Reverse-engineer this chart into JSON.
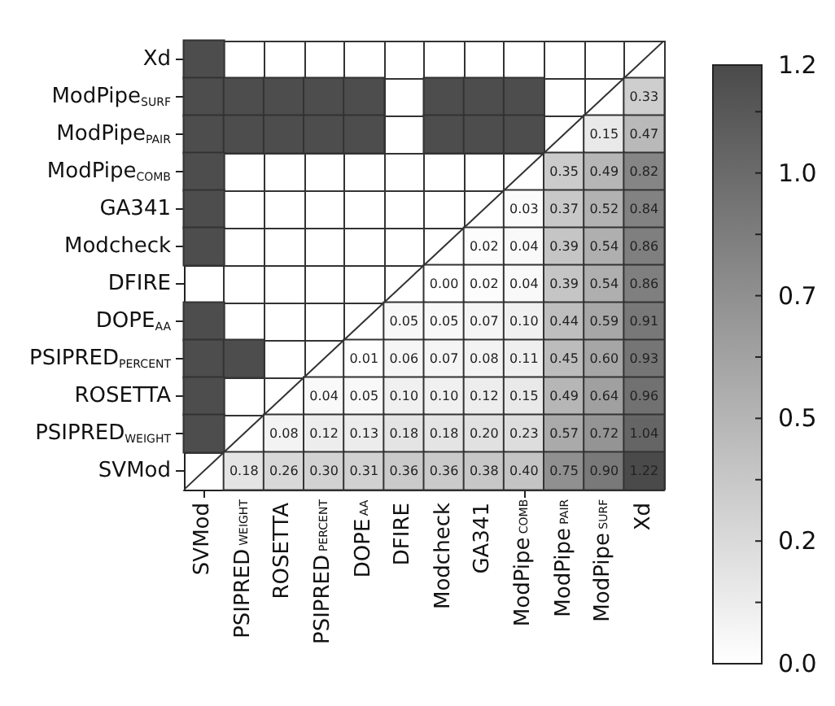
{
  "chart_data": {
    "type": "heatmap",
    "categories": [
      "SVMod",
      "PSIPRED$_{WEIGHT}$",
      "ROSETTA",
      "PSIPRED$_{PERCENT}$",
      "DOPE$_{AA}$",
      "DFIRE",
      "Modcheck",
      "GA341",
      "ModPipe$_{COMB}$",
      "ModPipe$_{PAIR}$",
      "ModPipe$_{SURF}$",
      "Xd"
    ],
    "y_categories": [
      "Xd",
      "ModPipe$_{SURF}$",
      "ModPipe$_{PAIR}$",
      "ModPipe$_{COMB}$",
      "GA341",
      "Modcheck",
      "DFIRE",
      "DOPE$_{AA}$",
      "PSIPRED$_{PERCENT}$",
      "ROSETTA",
      "PSIPRED$_{WEIGHT}$",
      "SVMod"
    ],
    "cells": [
      [
        1.2,
        null,
        null,
        null,
        null,
        null,
        null,
        null,
        null,
        null,
        null,
        null
      ],
      [
        1.2,
        1.2,
        1.2,
        1.2,
        1.2,
        null,
        1.2,
        1.2,
        1.2,
        null,
        null,
        0.33
      ],
      [
        1.2,
        1.2,
        1.2,
        1.2,
        1.2,
        null,
        1.2,
        1.2,
        1.2,
        null,
        0.15,
        0.47
      ],
      [
        1.2,
        null,
        null,
        null,
        null,
        null,
        null,
        null,
        null,
        0.35,
        0.49,
        0.82
      ],
      [
        1.2,
        null,
        null,
        null,
        null,
        null,
        null,
        null,
        0.03,
        0.37,
        0.52,
        0.84
      ],
      [
        1.2,
        null,
        null,
        null,
        null,
        null,
        null,
        0.02,
        0.04,
        0.39,
        0.54,
        0.86
      ],
      [
        null,
        null,
        null,
        null,
        null,
        null,
        0.0,
        0.02,
        0.04,
        0.39,
        0.54,
        0.86
      ],
      [
        1.2,
        null,
        null,
        null,
        null,
        0.05,
        0.05,
        0.07,
        0.1,
        0.44,
        0.59,
        0.91
      ],
      [
        1.2,
        1.2,
        null,
        null,
        0.01,
        0.06,
        0.07,
        0.08,
        0.11,
        0.45,
        0.6,
        0.93
      ],
      [
        1.2,
        null,
        null,
        0.04,
        0.05,
        0.1,
        0.1,
        0.12,
        0.15,
        0.49,
        0.64,
        0.96
      ],
      [
        1.2,
        null,
        0.08,
        0.12,
        0.13,
        0.18,
        0.18,
        0.2,
        0.23,
        0.57,
        0.72,
        1.04
      ],
      [
        null,
        0.18,
        0.26,
        0.3,
        0.31,
        0.36,
        0.36,
        0.38,
        0.4,
        0.75,
        0.9,
        1.22
      ]
    ],
    "cell_labels": [
      [
        null,
        null,
        null,
        null,
        null,
        null,
        null,
        null,
        null,
        null,
        null,
        null
      ],
      [
        null,
        null,
        null,
        null,
        null,
        null,
        null,
        null,
        null,
        null,
        null,
        "0.33"
      ],
      [
        null,
        null,
        null,
        null,
        null,
        null,
        null,
        null,
        null,
        null,
        "0.15",
        "0.47"
      ],
      [
        null,
        null,
        null,
        null,
        null,
        null,
        null,
        null,
        null,
        "0.35",
        "0.49",
        "0.82"
      ],
      [
        null,
        null,
        null,
        null,
        null,
        null,
        null,
        null,
        "0.03",
        "0.37",
        "0.52",
        "0.84"
      ],
      [
        null,
        null,
        null,
        null,
        null,
        null,
        null,
        "0.02",
        "0.04",
        "0.39",
        "0.54",
        "0.86"
      ],
      [
        null,
        null,
        null,
        null,
        null,
        null,
        "0.00",
        "0.02",
        "0.04",
        "0.39",
        "0.54",
        "0.86"
      ],
      [
        null,
        null,
        null,
        null,
        null,
        "0.05",
        "0.05",
        "0.07",
        "0.10",
        "0.44",
        "0.59",
        "0.91"
      ],
      [
        null,
        null,
        null,
        null,
        "0.01",
        "0.06",
        "0.07",
        "0.08",
        "0.11",
        "0.45",
        "0.60",
        "0.93"
      ],
      [
        null,
        null,
        null,
        "0.04",
        "0.05",
        "0.10",
        "0.10",
        "0.12",
        "0.15",
        "0.49",
        "0.64",
        "0.96"
      ],
      [
        null,
        null,
        "0.08",
        "0.12",
        "0.13",
        "0.18",
        "0.18",
        "0.20",
        "0.23",
        "0.57",
        "0.72",
        "1.04"
      ],
      [
        null,
        "0.18",
        "0.26",
        "0.30",
        "0.31",
        "0.36",
        "0.36",
        "0.38",
        "0.40",
        "0.75",
        "0.90",
        "1.22"
      ]
    ],
    "clim": [
      0,
      1.22
    ],
    "cticks": [
      {
        "value": 0,
        "label": "0.0"
      },
      {
        "value": 0.125,
        "label": null
      },
      {
        "value": 0.25,
        "label": "0.2"
      },
      {
        "value": 0.375,
        "label": null
      },
      {
        "value": 0.5,
        "label": "0.5"
      },
      {
        "value": 0.625,
        "label": null
      },
      {
        "value": 0.75,
        "label": "0.7"
      },
      {
        "value": 0.875,
        "label": null
      },
      {
        "value": 1.0,
        "label": "1.0"
      },
      {
        "value": 1.125,
        "label": null
      },
      {
        "value": 1.22,
        "label": "1.2"
      }
    ]
  }
}
